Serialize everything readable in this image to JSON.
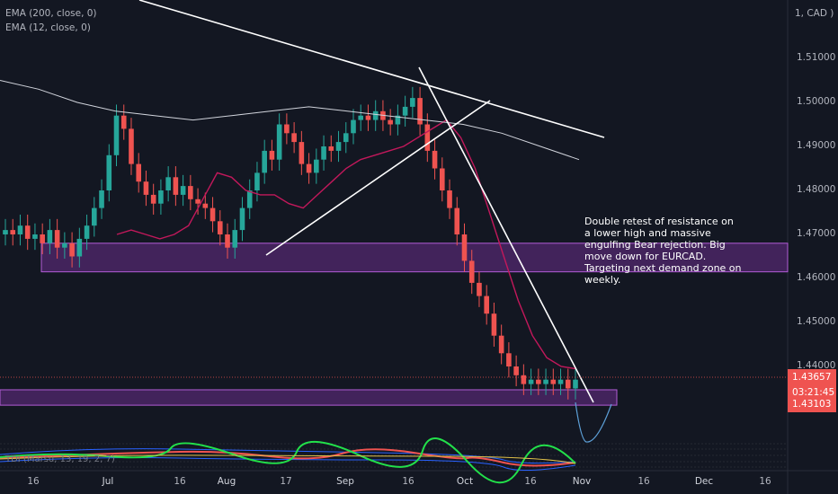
{
  "legend": {
    "ema200": "EMA (200, close, 0)",
    "ema12": "EMA (12, close, 0)"
  },
  "currency": "1, CAD )",
  "annotation": "Double retest of resistance on\na lower high and massive\nengulfing Bear rejection. Big\nmove down for EURCAD.\nTargeting next demand zone on\nweekly.",
  "price_badges": {
    "last": "1.43657",
    "countdown": "03:21:45",
    "low": "1.43103"
  },
  "oscillator_label": "TDI (Marsu, 13, 19, 2, 7)",
  "colors": {
    "up": "#26a69a",
    "down": "#ef5350",
    "zone_fill": "#6a2d8a",
    "zone_stroke": "#b25cd6",
    "ema12": "#c2185b",
    "ema200": "#d1d4dc",
    "trendline": "#ffffff",
    "background": "#131722"
  },
  "chart_data": {
    "type": "candlestick",
    "symbol": "EURCAD",
    "y_axis": {
      "ticks": [
        1.51,
        1.5,
        1.49,
        1.48,
        1.47,
        1.46,
        1.45,
        1.44
      ],
      "tick_labels": [
        "1.51000",
        "1.50000",
        "1.49000",
        "1.48000",
        "1.47000",
        "1.46000",
        "1.45000",
        "1.44000"
      ],
      "range": [
        1.428,
        1.516
      ]
    },
    "x_axis": {
      "ticks": [
        {
          "label": "16",
          "bold": false
        },
        {
          "label": "Jul",
          "bold": true
        },
        {
          "label": "16",
          "bold": false
        },
        {
          "label": "Aug",
          "bold": true
        },
        {
          "label": "17",
          "bold": false
        },
        {
          "label": "Sep",
          "bold": true
        },
        {
          "label": "16",
          "bold": false
        },
        {
          "label": "Oct",
          "bold": true
        },
        {
          "label": "16",
          "bold": false
        },
        {
          "label": "Nov",
          "bold": true
        },
        {
          "label": "16",
          "bold": false
        },
        {
          "label": "Dec",
          "bold": true
        },
        {
          "label": "16",
          "bold": false
        }
      ]
    },
    "zones": [
      {
        "name": "resistance-support zone",
        "high": 1.468,
        "low": 1.4615
      },
      {
        "name": "demand zone",
        "high": 1.4347,
        "low": 1.4312
      }
    ],
    "ema12_path": [
      1.47,
      1.471,
      1.47,
      1.469,
      1.47,
      1.472,
      1.478,
      1.484,
      1.483,
      1.48,
      1.479,
      1.479,
      1.477,
      1.476,
      1.479,
      1.482,
      1.485,
      1.487,
      1.488,
      1.489,
      1.49,
      1.492,
      1.494,
      1.496,
      1.492,
      1.485,
      1.475,
      1.465,
      1.455,
      1.447,
      1.442,
      1.44,
      1.4395
    ],
    "ema200_path": [
      1.505,
      1.503,
      1.5,
      1.498,
      1.497,
      1.496,
      1.497,
      1.498,
      1.499,
      1.498,
      1.497,
      1.496,
      1.495,
      1.493,
      1.49,
      1.487
    ],
    "closes": [
      1.471,
      1.47,
      1.472,
      1.469,
      1.47,
      1.468,
      1.471,
      1.467,
      1.468,
      1.465,
      1.469,
      1.472,
      1.476,
      1.48,
      1.488,
      1.497,
      1.494,
      1.486,
      1.482,
      1.479,
      1.477,
      1.48,
      1.483,
      1.479,
      1.481,
      1.478,
      1.477,
      1.476,
      1.473,
      1.47,
      1.467,
      1.471,
      1.476,
      1.48,
      1.484,
      1.489,
      1.487,
      1.495,
      1.493,
      1.491,
      1.486,
      1.484,
      1.487,
      1.49,
      1.489,
      1.491,
      1.493,
      1.496,
      1.497,
      1.496,
      1.498,
      1.496,
      1.495,
      1.497,
      1.499,
      1.501,
      1.495,
      1.489,
      1.485,
      1.48,
      1.476,
      1.47,
      1.464,
      1.459,
      1.456,
      1.452,
      1.447,
      1.443,
      1.44,
      1.438,
      1.436,
      1.437,
      1.436,
      1.437,
      1.436,
      1.437,
      1.435,
      1.437
    ]
  }
}
